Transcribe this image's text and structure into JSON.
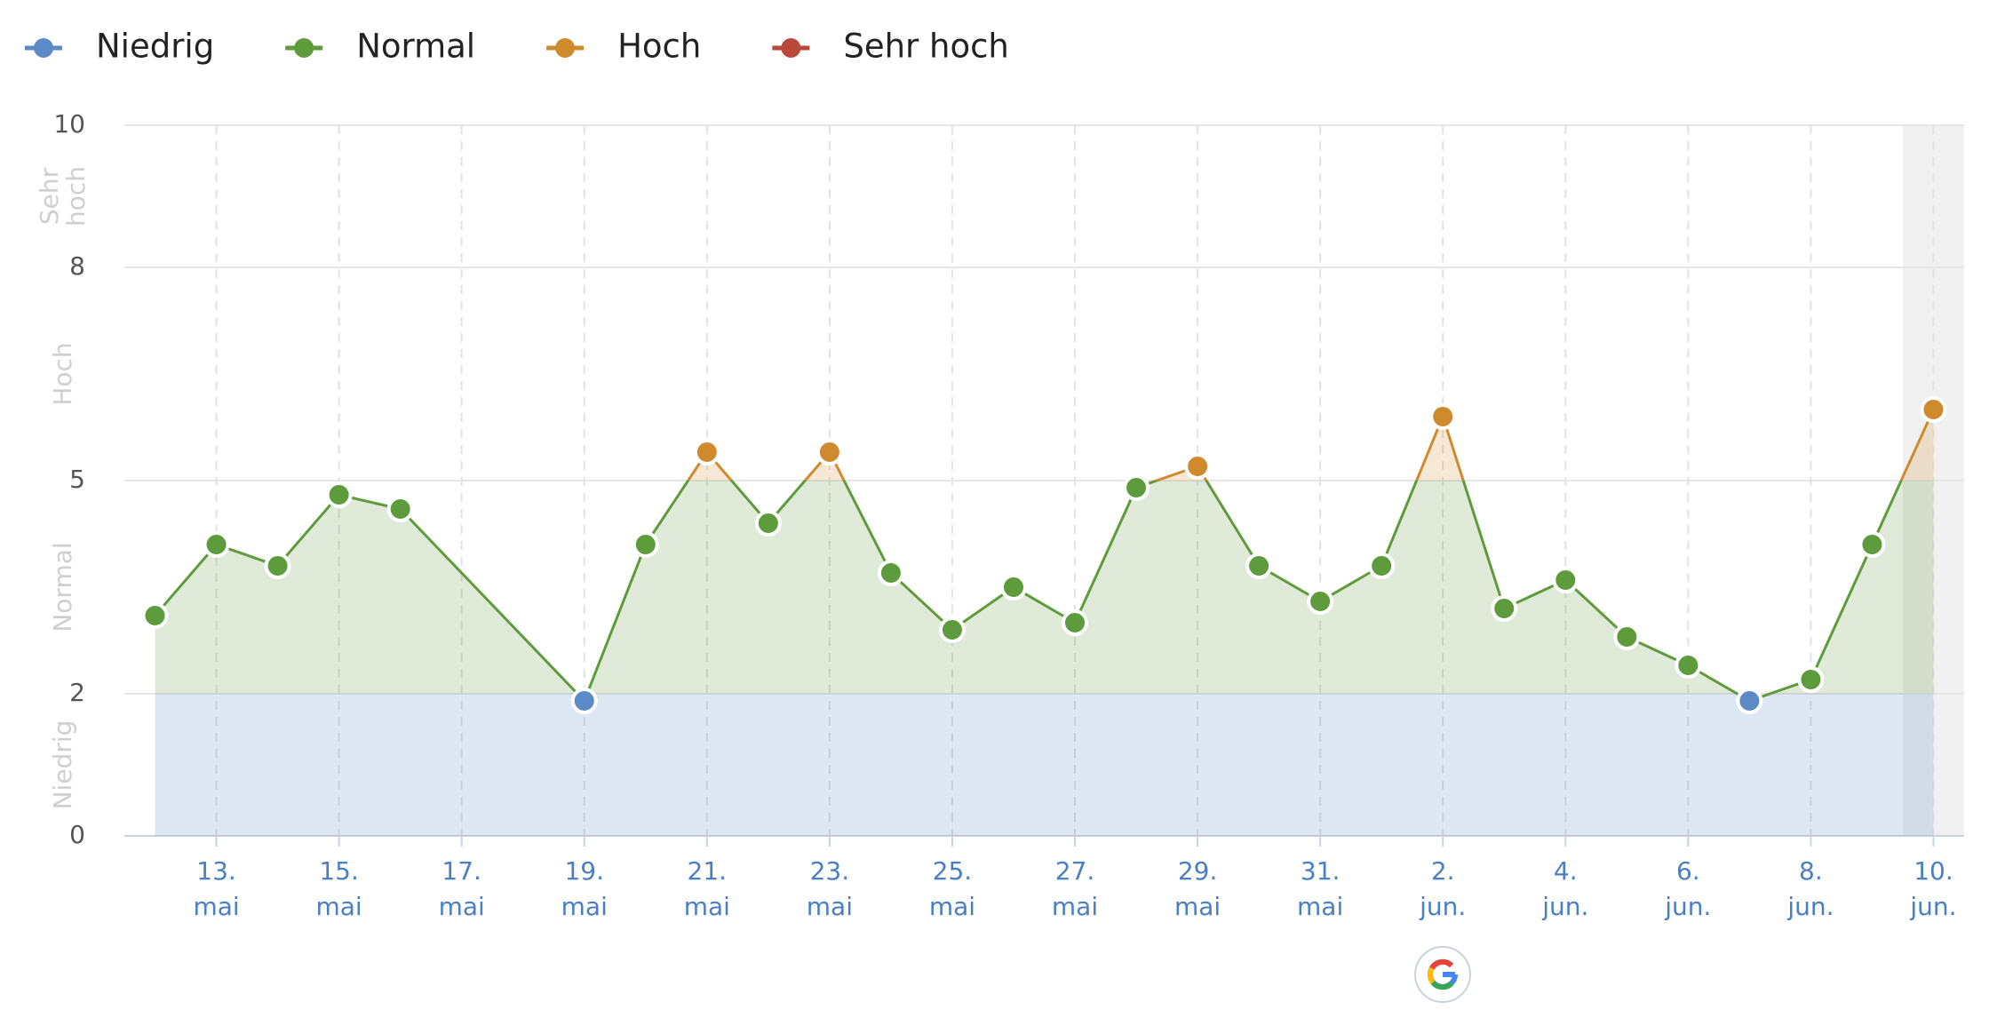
{
  "chart_data": {
    "type": "line",
    "levels": [
      {
        "name": "Niedrig",
        "color": "#5b8ac6",
        "from": 0,
        "to": 2
      },
      {
        "name": "Normal",
        "color": "#5e9b3c",
        "from": 2,
        "to": 5
      },
      {
        "name": "Hoch",
        "color": "#d08a2e",
        "from": 5,
        "to": 8
      },
      {
        "name": "Sehr hoch",
        "color": "#b9473a",
        "from": 8,
        "to": 10
      }
    ],
    "x": [
      12,
      13,
      14,
      15,
      16,
      19,
      20,
      21,
      22,
      23,
      24,
      25,
      26,
      27,
      28,
      29,
      30,
      31,
      32,
      33,
      34,
      35,
      36,
      37,
      38,
      39,
      40,
      41
    ],
    "values": [
      3.1,
      4.1,
      3.8,
      4.8,
      4.6,
      1.9,
      4.1,
      5.4,
      4.4,
      5.4,
      3.7,
      2.9,
      3.5,
      3.0,
      4.9,
      5.2,
      3.8,
      3.3,
      3.8,
      5.9,
      3.2,
      3.6,
      2.8,
      2.4,
      1.9,
      2.2,
      4.1,
      6.0
    ],
    "xlim": [
      11.5,
      41.5
    ],
    "xticks": [
      {
        "value": 13,
        "label": "13. mai"
      },
      {
        "value": 15,
        "label": "15. mai"
      },
      {
        "value": 17,
        "label": "17. mai"
      },
      {
        "value": 19,
        "label": "19. mai"
      },
      {
        "value": 21,
        "label": "21. mai"
      },
      {
        "value": 23,
        "label": "23. mai"
      },
      {
        "value": 25,
        "label": "25. mai"
      },
      {
        "value": 27,
        "label": "27. mai"
      },
      {
        "value": 29,
        "label": "29. mai"
      },
      {
        "value": 31,
        "label": "31. mai"
      },
      {
        "value": 33,
        "label": "2. jun."
      },
      {
        "value": 35,
        "label": "4. jun."
      },
      {
        "value": 37,
        "label": "6. jun."
      },
      {
        "value": 39,
        "label": "8. jun."
      },
      {
        "value": 41,
        "label": "10. jun."
      }
    ],
    "ylim": [
      0,
      10
    ],
    "yticks": [
      0,
      2,
      5,
      8,
      10
    ],
    "grid": true
  }
}
